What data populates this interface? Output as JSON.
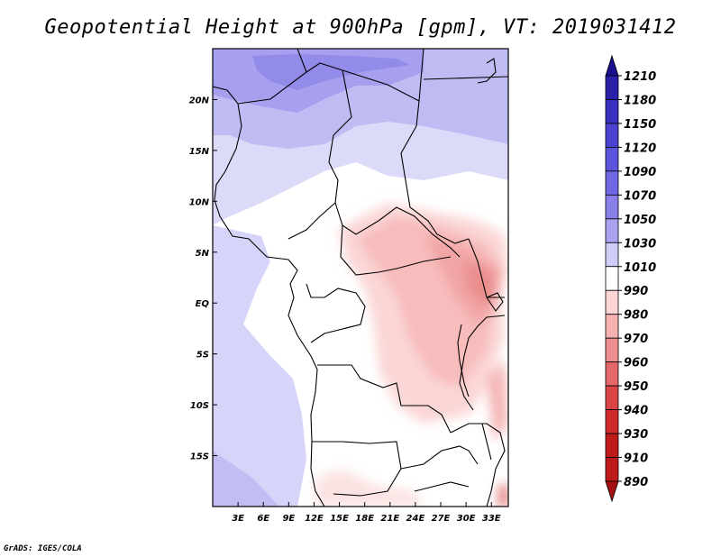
{
  "title": "Geopotential Height at 900hPa [gpm], VT: 2019031412",
  "credit": "GrADS: IGES/COLA",
  "map": {
    "lon_range": [
      0,
      35
    ],
    "lat_range": [
      -20,
      25
    ],
    "lat_ticks": [
      "20N",
      "15N",
      "10N",
      "5N",
      "EQ",
      "5S",
      "10S",
      "15S"
    ],
    "lon_ticks": [
      "3E",
      "6E",
      "9E",
      "12E",
      "15E",
      "18E",
      "21E",
      "24E",
      "27E",
      "30E",
      "33E"
    ]
  },
  "colorbar": {
    "levels": [
      "1210",
      "1180",
      "1150",
      "1120",
      "1090",
      "1070",
      "1050",
      "1030",
      "1010",
      "990",
      "980",
      "970",
      "960",
      "950",
      "940",
      "930",
      "910",
      "890"
    ],
    "colors": [
      "#1a0f8c",
      "#2a20a8",
      "#3a30c0",
      "#4b42d0",
      "#5c54dc",
      "#7068e3",
      "#8880e8",
      "#a8a2f0",
      "#cfcdf7",
      "#ffffff",
      "#fbd4d4",
      "#f6b1b1",
      "#ee8e8e",
      "#e46868",
      "#da4646",
      "#cf2a2a",
      "#bf1a1a",
      "#a50f0f"
    ]
  }
}
